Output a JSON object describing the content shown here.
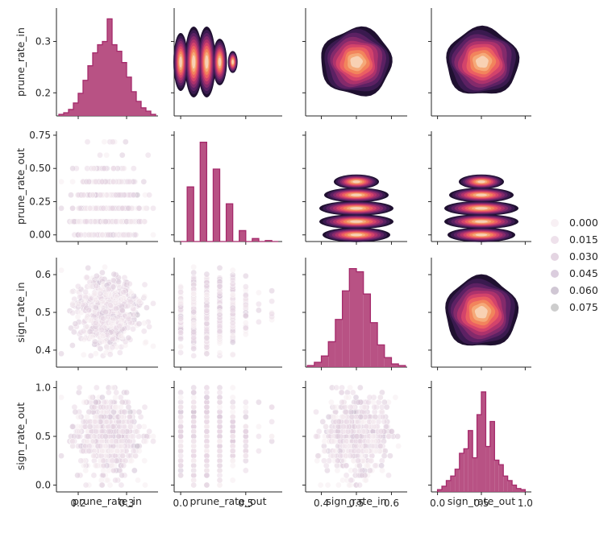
{
  "chart_data": {
    "type": "pairplot",
    "variables": [
      "prune_rate_in",
      "prune_rate_out",
      "sign_rate_in",
      "sign_rate_out"
    ],
    "axes": {
      "prune_rate_in": {
        "range": [
          0.155,
          0.365
        ],
        "ticks": [
          0.2,
          0.3
        ],
        "tick_labels": [
          "0.2",
          "0.3"
        ],
        "x_ticks_on_bottom": [
          0.2,
          0.3
        ]
      },
      "prune_rate_out": {
        "range": [
          -0.05,
          0.78
        ],
        "ticks": [
          0.0,
          0.25,
          0.5,
          0.75
        ],
        "tick_labels": [
          "0.00",
          "0.25",
          "0.50",
          "0.75"
        ],
        "x_ticks": [
          0.0,
          0.5
        ],
        "x_tick_labels": [
          "0.0",
          "0.5"
        ]
      },
      "sign_rate_in": {
        "range": [
          0.355,
          0.645
        ],
        "ticks": [
          0.4,
          0.5,
          0.6
        ],
        "tick_labels": [
          "0.4",
          "0.5",
          "0.6"
        ]
      },
      "sign_rate_out": {
        "range": [
          -0.07,
          1.07
        ],
        "ticks": [
          0.0,
          0.5,
          1.0
        ],
        "tick_labels": [
          "0.0",
          "0.5",
          "1.0"
        ]
      }
    },
    "diag_histograms": {
      "prune_rate_in": {
        "bins": [
          0.16,
          0.17,
          0.18,
          0.19,
          0.2,
          0.21,
          0.22,
          0.23,
          0.24,
          0.25,
          0.26,
          0.27,
          0.28,
          0.29,
          0.3,
          0.31,
          0.32,
          0.33,
          0.34,
          0.35,
          0.36
        ],
        "counts": [
          1,
          2,
          4,
          8,
          14,
          22,
          31,
          39,
          44,
          46,
          60,
          44,
          40,
          33,
          24,
          15,
          9,
          5,
          3,
          1
        ]
      },
      "prune_rate_out": {
        "bins": [
          0.0,
          0.05,
          0.1,
          0.15,
          0.2,
          0.25,
          0.3,
          0.35,
          0.4,
          0.45,
          0.5,
          0.55,
          0.6,
          0.65,
          0.7,
          0.75
        ],
        "counts": [
          0,
          55,
          0,
          100,
          0,
          73,
          0,
          38,
          0,
          11,
          0,
          3,
          0,
          1,
          0
        ]
      },
      "sign_rate_in": {
        "bins": [
          0.36,
          0.38,
          0.4,
          0.42,
          0.44,
          0.46,
          0.48,
          0.5,
          0.52,
          0.54,
          0.56,
          0.58,
          0.6,
          0.62,
          0.64
        ],
        "counts": [
          1,
          3,
          7,
          16,
          30,
          48,
          62,
          60,
          46,
          28,
          14,
          6,
          2,
          1
        ]
      },
      "sign_rate_out": {
        "bins": [
          0.0,
          0.05,
          0.1,
          0.15,
          0.2,
          0.25,
          0.3,
          0.35,
          0.4,
          0.45,
          0.5,
          0.55,
          0.6,
          0.65,
          0.7,
          0.75,
          0.8,
          0.85,
          0.9,
          0.95,
          1.0
        ],
        "counts": [
          2,
          5,
          10,
          14,
          20,
          34,
          38,
          54,
          30,
          68,
          88,
          40,
          62,
          28,
          24,
          14,
          10,
          6,
          3,
          2
        ]
      }
    },
    "scatter_point_counts": 650,
    "kde_layers": 10,
    "hue_legend": {
      "title": "",
      "values": [
        "0.000",
        "0.015",
        "0.030",
        "0.045",
        "0.060",
        "0.075"
      ],
      "colors": [
        "#f6ecf1",
        "#ead9e6",
        "#ddcadb",
        "#d2c1d6",
        "#c4b9c9",
        "#c0c0c0"
      ]
    },
    "colors": {
      "hist": "#b2437a",
      "hist_edge": "#a52a6b",
      "scatter": "#d8bcd6",
      "kde": [
        "#1f1030",
        "#3a1a4f",
        "#5c2163",
        "#842a6b",
        "#ad326c",
        "#d3436b",
        "#eb5f62",
        "#f2845c",
        "#f5a978",
        "#f8d1b3"
      ]
    }
  }
}
